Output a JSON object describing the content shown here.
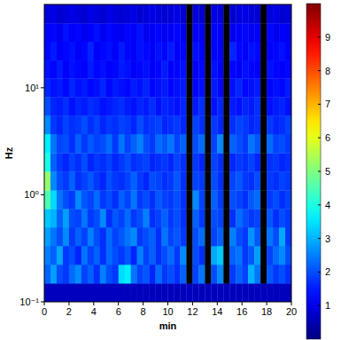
{
  "chart_data": {
    "type": "heatmap",
    "x_label": "min",
    "y_label": "Hz",
    "log": "y",
    "color": "jet",
    "xlim": [
      0,
      20
    ],
    "ylim": [
      0.1,
      60
    ],
    "xticks": [
      0,
      2,
      4,
      6,
      8,
      10,
      12,
      14,
      16,
      18,
      20
    ],
    "yticks": [
      {
        "value": 0.1,
        "label": "10⁻¹"
      },
      {
        "value": 1,
        "label": "10⁰"
      },
      {
        "value": 10,
        "label": "10¹"
      }
    ],
    "x_bins": [
      0,
      0.5,
      1,
      1.5,
      2,
      2.5,
      3,
      3.5,
      4,
      4.5,
      5,
      5.5,
      6,
      6.5,
      7,
      7.5,
      8,
      8.5,
      9,
      9.5,
      10,
      10.5,
      11,
      11.5,
      12,
      12.5,
      13,
      13.5,
      14,
      14.5,
      15,
      15.5,
      16,
      16.5,
      17,
      17.5,
      18,
      18.5,
      19,
      19.5,
      20
    ],
    "y_bins": [
      0.1,
      0.149,
      0.223,
      0.333,
      0.497,
      0.74,
      1.1,
      1.65,
      2.46,
      3.7,
      5.5,
      8.2,
      12.2,
      18,
      27,
      40,
      60
    ],
    "z": [
      [
        0.6,
        0.6,
        0.6,
        0.6,
        0.6,
        0.6,
        0.6,
        0.6,
        0.6,
        0.6,
        0.6,
        0.6,
        0.6,
        0.6,
        0.6,
        0.6,
        0.6,
        0.6,
        0.6,
        0.6,
        0.6,
        0.6,
        0.6,
        0.6,
        0.6,
        0.6,
        0.6,
        0.6,
        0.6,
        0.6,
        0.6,
        0.6,
        0.6,
        0.6,
        0.6,
        0.6,
        0.6,
        0.6,
        0.6,
        0.6
      ],
      [
        2.2,
        2.8,
        2.0,
        1.8,
        2.3,
        2.6,
        1.9,
        2.2,
        1.7,
        2.5,
        2.0,
        1.8,
        3.4,
        3.6,
        2.4,
        1.9,
        2.1,
        1.6,
        2.3,
        1.8,
        2.0,
        1.7,
        2.2,
        null,
        1.9,
        2.4,
        null,
        2.0,
        2.6,
        null,
        1.8,
        2.2,
        1.9,
        3.0,
        2.4,
        null,
        2.1,
        1.8,
        2.0,
        1.7
      ],
      [
        2.5,
        2.2,
        2.9,
        1.8,
        2.0,
        1.6,
        2.4,
        1.9,
        2.2,
        1.7,
        2.3,
        2.0,
        1.8,
        2.1,
        1.6,
        2.5,
        1.9,
        2.2,
        1.7,
        2.0,
        2.3,
        1.8,
        2.6,
        null,
        2.0,
        1.7,
        null,
        2.9,
        3.2,
        null,
        2.2,
        2.4,
        1.8,
        2.1,
        2.8,
        null,
        1.9,
        2.3,
        2.6,
        2.0
      ],
      [
        2.8,
        2.4,
        2.0,
        2.6,
        1.8,
        2.2,
        1.9,
        2.5,
        2.0,
        1.7,
        2.3,
        1.9,
        2.1,
        2.4,
        2.6,
        1.8,
        2.0,
        2.2,
        1.7,
        2.4,
        1.9,
        2.1,
        1.8,
        null,
        2.0,
        2.3,
        null,
        1.9,
        2.2,
        null,
        2.5,
        2.0,
        1.8,
        2.7,
        2.1,
        null,
        2.4,
        2.0,
        2.9,
        1.8
      ],
      [
        3.2,
        3.0,
        2.2,
        2.8,
        2.0,
        1.9,
        2.4,
        1.8,
        2.0,
        2.6,
        1.7,
        2.1,
        1.9,
        2.3,
        1.8,
        2.0,
        2.5,
        1.7,
        1.9,
        2.2,
        1.8,
        2.0,
        1.7,
        null,
        2.2,
        1.8,
        null,
        2.0,
        1.9,
        null,
        1.7,
        2.3,
        2.0,
        1.8,
        1.9,
        null,
        2.1,
        1.7,
        2.0,
        1.8
      ],
      [
        4.5,
        3.4,
        2.4,
        2.0,
        1.8,
        2.6,
        2.1,
        1.9,
        2.3,
        1.8,
        2.0,
        1.7,
        2.2,
        1.9,
        2.4,
        1.8,
        2.0,
        1.7,
        2.1,
        1.9,
        1.8,
        2.0,
        1.7,
        null,
        2.6,
        1.9,
        null,
        2.2,
        1.8,
        null,
        2.0,
        1.9,
        1.7,
        2.1,
        2.3,
        null,
        1.8,
        2.0,
        1.7,
        1.9
      ],
      [
        5.2,
        2.6,
        2.0,
        1.8,
        2.2,
        1.7,
        1.9,
        2.1,
        1.8,
        1.6,
        2.0,
        1.8,
        1.7,
        1.9,
        2.2,
        1.8,
        1.6,
        2.0,
        1.9,
        1.7,
        1.8,
        2.1,
        1.7,
        null,
        1.9,
        1.8,
        null,
        2.0,
        1.7,
        null,
        1.9,
        2.1,
        1.8,
        1.7,
        2.0,
        null,
        1.8,
        1.7,
        1.9,
        1.8
      ],
      [
        4.0,
        2.2,
        1.8,
        1.6,
        1.9,
        1.7,
        2.0,
        1.6,
        1.8,
        1.7,
        1.9,
        1.6,
        1.8,
        2.0,
        1.7,
        1.8,
        1.9,
        1.6,
        1.7,
        1.8,
        1.6,
        1.9,
        1.7,
        null,
        1.8,
        1.6,
        null,
        1.9,
        1.7,
        null,
        1.6,
        1.8,
        1.7,
        1.9,
        1.6,
        null,
        1.7,
        1.8,
        1.6,
        1.7
      ],
      [
        3.6,
        2.4,
        1.9,
        2.0,
        1.7,
        2.2,
        1.8,
        2.1,
        1.9,
        2.0,
        2.3,
        1.8,
        2.4,
        1.9,
        2.2,
        2.5,
        2.0,
        1.8,
        2.3,
        2.1,
        2.4,
        1.9,
        2.2,
        null,
        2.0,
        2.3,
        null,
        1.9,
        2.6,
        null,
        2.2,
        2.0,
        1.8,
        2.4,
        2.1,
        null,
        2.3,
        1.9,
        2.0,
        1.8
      ],
      [
        2.6,
        1.8,
        1.6,
        1.9,
        1.7,
        1.8,
        2.0,
        1.7,
        1.9,
        1.6,
        1.8,
        1.7,
        1.9,
        1.8,
        1.6,
        2.0,
        1.7,
        1.8,
        1.9,
        1.6,
        1.7,
        1.8,
        1.6,
        null,
        1.9,
        1.7,
        null,
        1.8,
        1.6,
        null,
        1.7,
        1.9,
        1.8,
        1.6,
        1.7,
        null,
        1.8,
        1.6,
        1.7,
        1.9
      ],
      [
        2.0,
        1.6,
        1.5,
        1.7,
        1.4,
        1.6,
        1.5,
        1.7,
        1.6,
        1.4,
        1.5,
        1.6,
        1.7,
        1.5,
        1.4,
        1.6,
        1.5,
        1.7,
        1.4,
        1.6,
        1.5,
        1.4,
        1.6,
        null,
        1.5,
        1.7,
        null,
        1.4,
        1.6,
        null,
        1.5,
        1.4,
        1.6,
        1.5,
        1.7,
        null,
        1.4,
        1.5,
        1.6,
        1.4
      ],
      [
        1.6,
        1.4,
        1.5,
        1.3,
        1.6,
        1.4,
        1.5,
        1.3,
        1.4,
        1.6,
        1.3,
        1.5,
        1.4,
        1.3,
        1.5,
        1.4,
        1.6,
        1.3,
        1.4,
        1.5,
        1.3,
        1.4,
        1.5,
        null,
        1.3,
        1.4,
        null,
        1.5,
        1.3,
        null,
        1.4,
        1.6,
        1.3,
        1.4,
        1.5,
        null,
        1.3,
        1.4,
        1.3,
        1.5
      ],
      [
        1.4,
        1.3,
        1.5,
        1.2,
        1.4,
        1.3,
        1.2,
        1.5,
        1.3,
        1.4,
        1.2,
        1.3,
        1.5,
        1.4,
        1.2,
        1.3,
        1.4,
        1.2,
        1.3,
        1.5,
        1.2,
        1.3,
        1.4,
        null,
        1.2,
        1.3,
        null,
        1.4,
        1.2,
        null,
        1.3,
        1.2,
        1.4,
        1.3,
        1.2,
        null,
        1.4,
        1.3,
        1.2,
        1.3
      ],
      [
        1.3,
        1.5,
        1.2,
        1.3,
        1.4,
        1.2,
        1.3,
        1.6,
        1.2,
        1.3,
        1.4,
        1.2,
        1.5,
        1.3,
        1.2,
        1.4,
        1.3,
        1.2,
        1.4,
        1.3,
        1.5,
        1.2,
        1.3,
        null,
        1.4,
        1.2,
        null,
        1.3,
        1.2,
        null,
        1.6,
        1.3,
        1.2,
        1.4,
        1.3,
        null,
        1.2,
        1.3,
        1.4,
        1.2
      ],
      [
        1.2,
        1.3,
        1.1,
        1.4,
        1.2,
        1.3,
        1.1,
        1.2,
        1.4,
        1.1,
        1.3,
        1.2,
        1.1,
        1.3,
        1.2,
        1.4,
        1.1,
        1.2,
        1.3,
        1.1,
        1.2,
        1.3,
        1.1,
        null,
        1.2,
        1.1,
        null,
        1.3,
        1.2,
        null,
        1.1,
        1.2,
        1.3,
        1.1,
        1.2,
        null,
        1.3,
        1.1,
        1.2,
        1.1
      ],
      [
        0.9,
        1.0,
        0.8,
        0.9,
        1.0,
        0.9,
        0.8,
        1.0,
        0.9,
        0.8,
        1.0,
        0.9,
        0.8,
        0.9,
        1.0,
        0.8,
        0.9,
        1.0,
        0.9,
        0.8,
        0.9,
        1.0,
        0.8,
        null,
        0.9,
        0.8,
        null,
        1.0,
        0.9,
        null,
        0.8,
        0.9,
        1.0,
        0.9,
        0.8,
        null,
        0.9,
        1.0,
        0.8,
        0.9
      ]
    ],
    "colorbar": {
      "range": [
        0,
        10
      ],
      "ticks": [
        1,
        2,
        3,
        4,
        5,
        6,
        7,
        8,
        9
      ]
    }
  }
}
